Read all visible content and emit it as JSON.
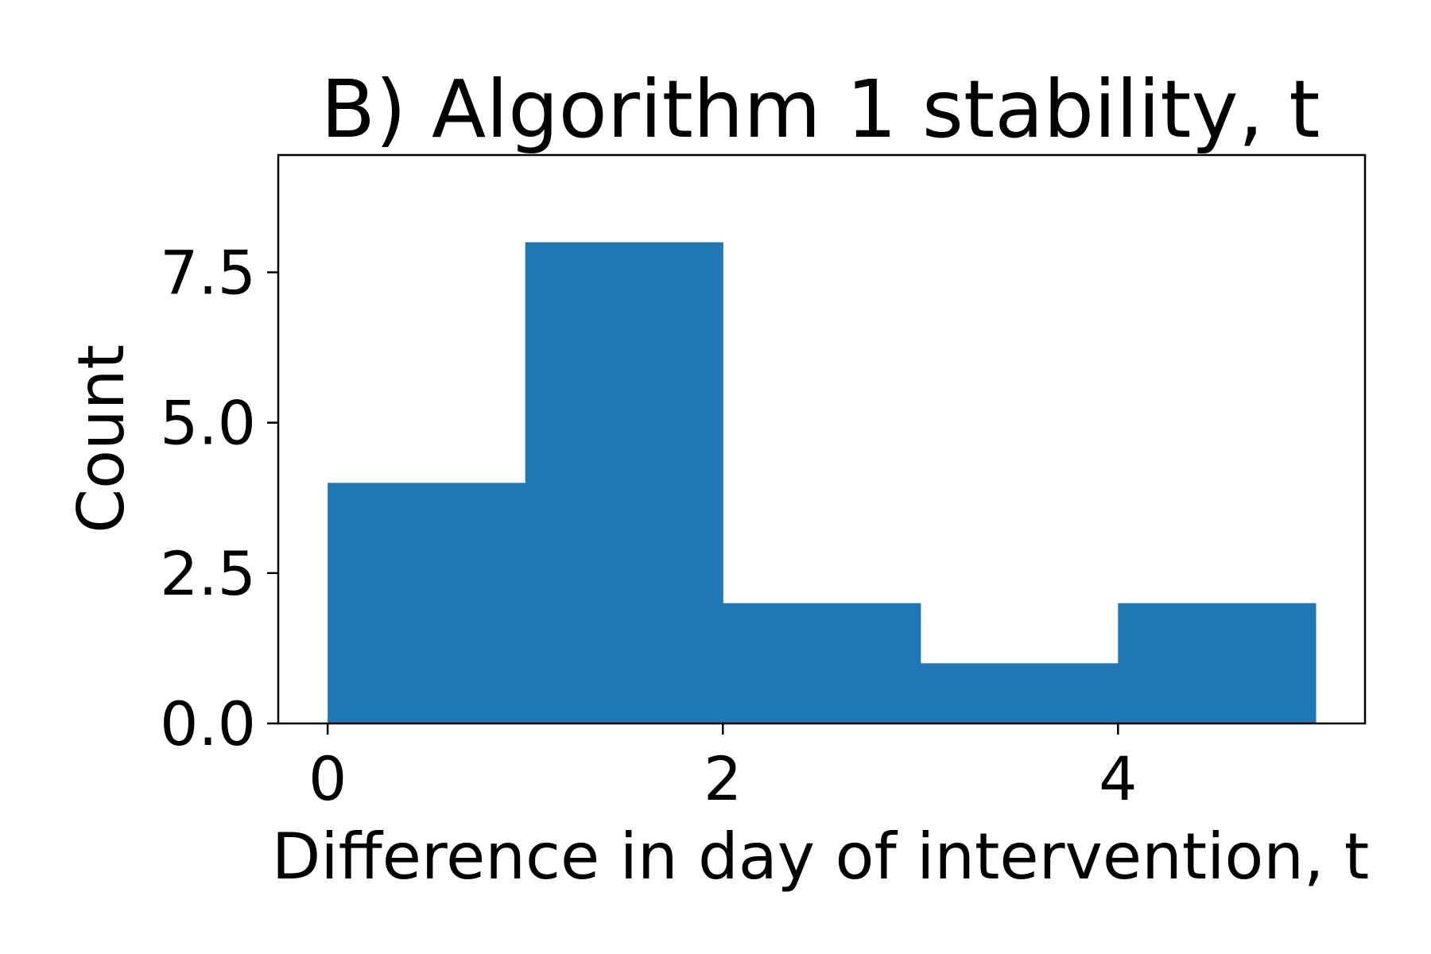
{
  "chart_data": {
    "type": "bar",
    "title": "B) Algorithm 1 stability, t",
    "xlabel": "Difference in day of intervention, t",
    "ylabel": "Count",
    "bin_edges": [
      0,
      1,
      2,
      3,
      4,
      5
    ],
    "values": [
      4,
      8,
      2,
      1,
      2
    ],
    "xlim": [
      -0.25,
      5.25
    ],
    "ylim": [
      0,
      9.45
    ],
    "xticks": [
      0,
      2,
      4
    ],
    "xtick_labels": [
      "0",
      "2",
      "4"
    ],
    "yticks": [
      0,
      2.5,
      5,
      7.5
    ],
    "ytick_labels": [
      "0.0",
      "2.5",
      "5.0",
      "7.5"
    ],
    "bar_color": "#1f77b4",
    "grid": false,
    "legend": "none"
  }
}
